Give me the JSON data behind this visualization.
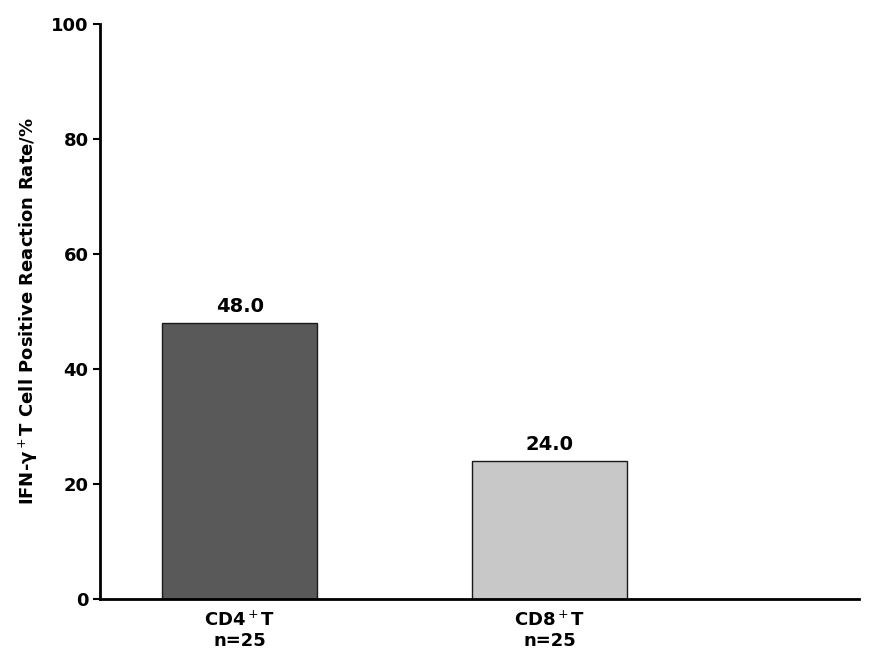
{
  "categories": [
    "CD4$^+$T\nn=25",
    "CD8$^+$T\nn=25"
  ],
  "values": [
    48.0,
    24.0
  ],
  "bar_colors": [
    "#595959",
    "#c8c8c8"
  ],
  "bar_width": 0.5,
  "ylabel": "IFN-γ$^+$T Cell Positive Reaction Rate/%",
  "ylim": [
    0,
    100
  ],
  "yticks": [
    0,
    20,
    40,
    60,
    80,
    100
  ],
  "value_labels": [
    "48.0",
    "24.0"
  ],
  "value_fontsize": 14,
  "label_fontsize": 13,
  "tick_fontsize": 13,
  "background_color": "#ffffff",
  "bar_edge_color": "#1a1a1a"
}
